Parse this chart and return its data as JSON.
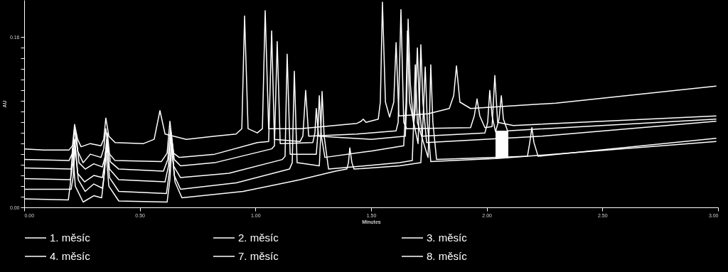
{
  "chart_data": {
    "type": "line",
    "xlabel": "Minutes",
    "ylabel": "AU",
    "xlim": [
      0,
      3
    ],
    "ylim": [
      0,
      0.195
    ],
    "xticks": [
      {
        "value": 0,
        "label": "0.00"
      },
      {
        "value": 0.5,
        "label": "0.50"
      },
      {
        "value": 1,
        "label": "1.00"
      },
      {
        "value": 1.5,
        "label": "1.50"
      },
      {
        "value": 2,
        "label": "2.00"
      },
      {
        "value": 2.5,
        "label": "2.50"
      },
      {
        "value": 3,
        "label": "3.00"
      }
    ],
    "yticks": [
      {
        "value": 0,
        "label": "0.00"
      },
      {
        "value": 0.01,
        "label": null
      },
      {
        "value": 0.02,
        "label": null
      },
      {
        "value": 0.03,
        "label": null
      },
      {
        "value": 0.04,
        "label": null
      },
      {
        "value": 0.05,
        "label": null
      },
      {
        "value": 0.06,
        "label": null
      },
      {
        "value": 0.07,
        "label": null
      },
      {
        "value": 0.08,
        "label": null
      },
      {
        "value": 0.09,
        "label": null
      },
      {
        "value": 0.1,
        "label": null
      },
      {
        "value": 0.11,
        "label": null
      },
      {
        "value": 0.12,
        "label": null
      },
      {
        "value": 0.13,
        "label": null
      },
      {
        "value": 0.14,
        "label": null
      },
      {
        "value": 0.15,
        "label": null
      },
      {
        "value": 0.16,
        "label": "0.16"
      }
    ],
    "grid": false,
    "legend": "bottom",
    "line_style": "solid",
    "series": [
      {
        "name": "1. měsíc",
        "color": "#ffffff",
        "x": [
          0,
          0.086,
          0.194,
          0.209,
          0.218,
          0.231,
          0.246,
          0.286,
          0.332,
          0.344,
          0.353,
          0.366,
          0.393,
          0.516,
          0.562,
          0.587,
          0.609,
          0.701,
          0.824,
          0.916,
          0.941,
          0.953,
          0.968,
          1.008,
          1.03,
          1.042,
          1.057,
          1.193,
          1.439,
          1.457,
          1.466,
          1.478,
          1.531,
          1.54,
          1.549,
          1.562,
          1.58,
          1.598,
          1.608,
          1.62,
          1.746,
          1.838,
          1.857,
          1.869,
          1.884,
          1.93,
          2.299,
          2.991
        ],
        "values": [
          0.055,
          0.054,
          0.054,
          0.058,
          0.078,
          0.064,
          0.057,
          0.06,
          0.058,
          0.064,
          0.084,
          0.067,
          0.061,
          0.06,
          0.064,
          0.091,
          0.069,
          0.064,
          0.067,
          0.069,
          0.074,
          0.18,
          0.074,
          0.07,
          0.074,
          0.185,
          0.074,
          0.074,
          0.079,
          0.081,
          0.083,
          0.08,
          0.083,
          0.099,
          0.193,
          0.099,
          0.085,
          0.099,
          0.155,
          0.086,
          0.088,
          0.093,
          0.105,
          0.133,
          0.099,
          0.093,
          0.098,
          0.114
        ]
      },
      {
        "name": "2. měsíc",
        "color": "#ffffff",
        "x": [
          0,
          0.194,
          0.209,
          0.218,
          0.231,
          0.255,
          0.286,
          0.332,
          0.344,
          0.353,
          0.366,
          0.393,
          0.593,
          0.618,
          0.63,
          0.646,
          0.67,
          0.824,
          1.008,
          1.057,
          1.07,
          1.082,
          1.193,
          1.205,
          1.217,
          1.23,
          1.439,
          1.608,
          1.617,
          1.629,
          1.641,
          1.654,
          1.93,
          1.946,
          1.958,
          1.97,
          1.992,
          2.023,
          2.035,
          2.047,
          2.115,
          2.991
        ],
        "values": [
          0.045,
          0.044,
          0.051,
          0.074,
          0.053,
          0.042,
          0.05,
          0.047,
          0.055,
          0.074,
          0.051,
          0.044,
          0.043,
          0.051,
          0.081,
          0.051,
          0.047,
          0.05,
          0.061,
          0.062,
          0.166,
          0.064,
          0.062,
          0.067,
          0.11,
          0.067,
          0.069,
          0.072,
          0.08,
          0.186,
          0.08,
          0.074,
          0.075,
          0.086,
          0.102,
          0.086,
          0.075,
          0.076,
          0.124,
          0.08,
          0.077,
          0.086
        ]
      },
      {
        "name": "3. měsíc",
        "color": "#ffffff",
        "x": [
          0,
          0.203,
          0.215,
          0.224,
          0.237,
          0.264,
          0.301,
          0.338,
          0.35,
          0.36,
          0.372,
          0.409,
          0.602,
          0.621,
          0.633,
          0.649,
          0.676,
          0.824,
          1.07,
          1.082,
          1.094,
          1.107,
          1.248,
          1.257,
          1.263,
          1.273,
          1.5,
          1.648,
          1.654,
          1.66,
          1.669,
          1.684,
          1.691,
          1.7,
          1.709,
          1.721,
          1.992,
          2.004,
          2.013,
          2.023,
          2.038,
          2.053,
          2.063,
          2.072,
          2.09,
          2.991
        ],
        "values": [
          0.037,
          0.036,
          0.045,
          0.07,
          0.042,
          0.036,
          0.041,
          0.038,
          0.048,
          0.07,
          0.043,
          0.036,
          0.034,
          0.045,
          0.074,
          0.045,
          0.039,
          0.042,
          0.055,
          0.058,
          0.156,
          0.06,
          0.061,
          0.07,
          0.093,
          0.067,
          0.064,
          0.067,
          0.099,
          0.177,
          0.118,
          0.077,
          0.093,
          0.15,
          0.093,
          0.067,
          0.07,
          0.08,
          0.11,
          0.086,
          0.071,
          0.083,
          0.105,
          0.083,
          0.072,
          0.083
        ]
      },
      {
        "name": "4. měsíc",
        "color": "#ffffff",
        "x": [
          0,
          0.2,
          0.209,
          0.218,
          0.231,
          0.261,
          0.301,
          0.338,
          0.347,
          0.357,
          0.369,
          0.409,
          0.609,
          0.624,
          0.633,
          0.646,
          0.676,
          0.885,
          1.116,
          1.128,
          1.137,
          1.15,
          1.263,
          1.269,
          1.276,
          1.285,
          1.3,
          1.5,
          1.641,
          1.651,
          1.657,
          1.666,
          1.703,
          1.709,
          1.715,
          1.724,
          1.74,
          2.238,
          2.991
        ],
        "values": [
          0.027,
          0.026,
          0.039,
          0.064,
          0.032,
          0.024,
          0.03,
          0.028,
          0.039,
          0.064,
          0.036,
          0.026,
          0.024,
          0.039,
          0.067,
          0.039,
          0.028,
          0.032,
          0.045,
          0.048,
          0.144,
          0.05,
          0.05,
          0.067,
          0.105,
          0.067,
          0.047,
          0.053,
          0.058,
          0.099,
          0.166,
          0.099,
          0.06,
          0.099,
          0.153,
          0.099,
          0.061,
          0.067,
          0.081
        ]
      },
      {
        "name": "7. měsíc",
        "color": "#ffffff",
        "x": [
          0,
          0.203,
          0.212,
          0.221,
          0.234,
          0.264,
          0.301,
          0.338,
          0.347,
          0.357,
          0.369,
          0.409,
          0.615,
          0.627,
          0.636,
          0.649,
          0.676,
          0.916,
          1.147,
          1.159,
          1.168,
          1.18,
          1.276,
          1.282,
          1.288,
          1.297,
          1.316,
          1.623,
          1.678,
          1.684,
          1.691,
          1.7,
          1.746,
          1.752,
          1.758,
          1.767,
          1.783,
          2.176,
          2.186,
          2.195,
          2.204,
          2.222,
          2.991
        ],
        "values": [
          0.017,
          0.017,
          0.029,
          0.058,
          0.026,
          0.015,
          0.022,
          0.018,
          0.032,
          0.058,
          0.028,
          0.015,
          0.013,
          0.032,
          0.061,
          0.03,
          0.017,
          0.023,
          0.036,
          0.042,
          0.128,
          0.042,
          0.039,
          0.067,
          0.109,
          0.067,
          0.036,
          0.042,
          0.044,
          0.08,
          0.134,
          0.08,
          0.047,
          0.08,
          0.134,
          0.08,
          0.045,
          0.048,
          0.061,
          0.075,
          0.061,
          0.048,
          0.065
        ]
      },
      {
        "name": "8. měsíc",
        "color": "#ffffff",
        "x": [
          0,
          0.191,
          0.2,
          0.209,
          0.221,
          0.255,
          0.301,
          0.335,
          0.344,
          0.353,
          0.366,
          0.409,
          0.618,
          0.63,
          0.639,
          0.652,
          0.682,
          0.947,
          1.193,
          1.346,
          1.395,
          1.402,
          1.408,
          1.417,
          1.426,
          1.623,
          1.715,
          1.724,
          1.734,
          1.743,
          1.758,
          2.053,
          2.991
        ],
        "values": [
          0.008,
          0.007,
          0.023,
          0.056,
          0.02,
          0.005,
          0.011,
          0.009,
          0.026,
          0.055,
          0.02,
          0.006,
          0.005,
          0.026,
          0.058,
          0.024,
          0.009,
          0.015,
          0.026,
          0.034,
          0.036,
          0.042,
          0.056,
          0.042,
          0.036,
          0.039,
          0.042,
          0.08,
          0.132,
          0.08,
          0.043,
          0.046,
          0.062
        ]
      }
    ]
  }
}
